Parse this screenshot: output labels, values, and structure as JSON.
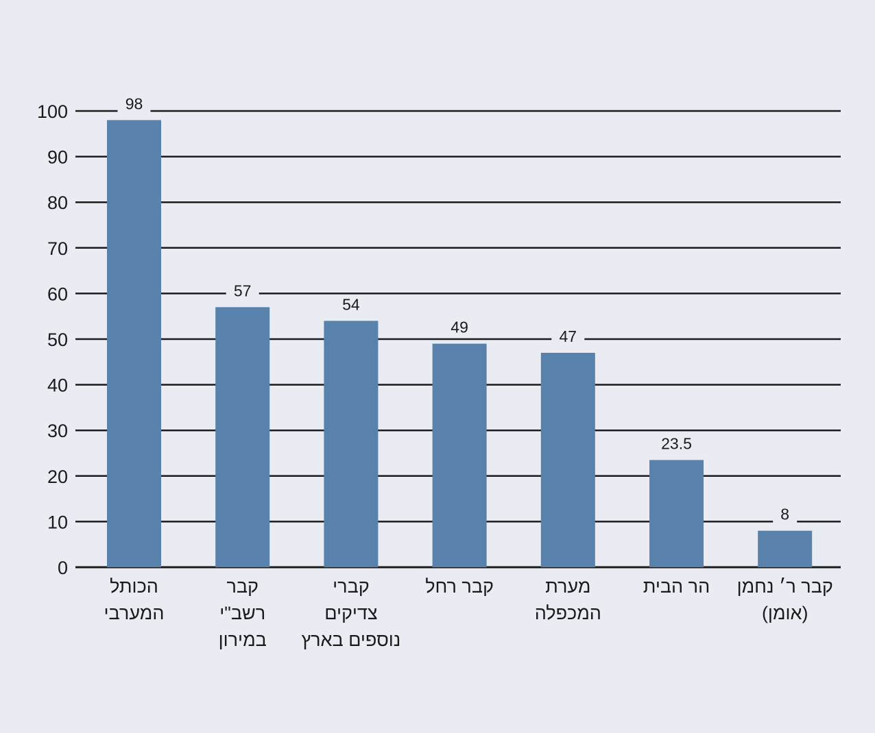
{
  "chart_data": {
    "type": "bar",
    "title": "",
    "xlabel": "",
    "ylabel": "",
    "ylim": [
      0,
      100
    ],
    "y_ticks": [
      0,
      10,
      20,
      30,
      40,
      50,
      60,
      70,
      80,
      90,
      100
    ],
    "grid": "horizontal",
    "categories": [
      [
        "הכותל",
        "המערבי"
      ],
      [
        "קבר",
        "רשב\"י",
        "במירון"
      ],
      [
        "קברי",
        "צדיקים",
        "נוספים בארץ"
      ],
      [
        "קבר רחל"
      ],
      [
        "מערת",
        "המכפלה"
      ],
      [
        "הר הבית"
      ],
      [
        "קבר ר׳ נחמן",
        "(אומן)"
      ]
    ],
    "values": [
      98,
      57,
      54,
      49,
      47,
      23.5,
      8
    ],
    "data_labels": [
      "98",
      "57",
      "54",
      "49",
      "47",
      "23.5",
      "8"
    ],
    "colors": {
      "bar": "#5882ab",
      "background": "#e9edf3",
      "grid": "#1a1a1a",
      "text": "#1a1a1a"
    }
  }
}
